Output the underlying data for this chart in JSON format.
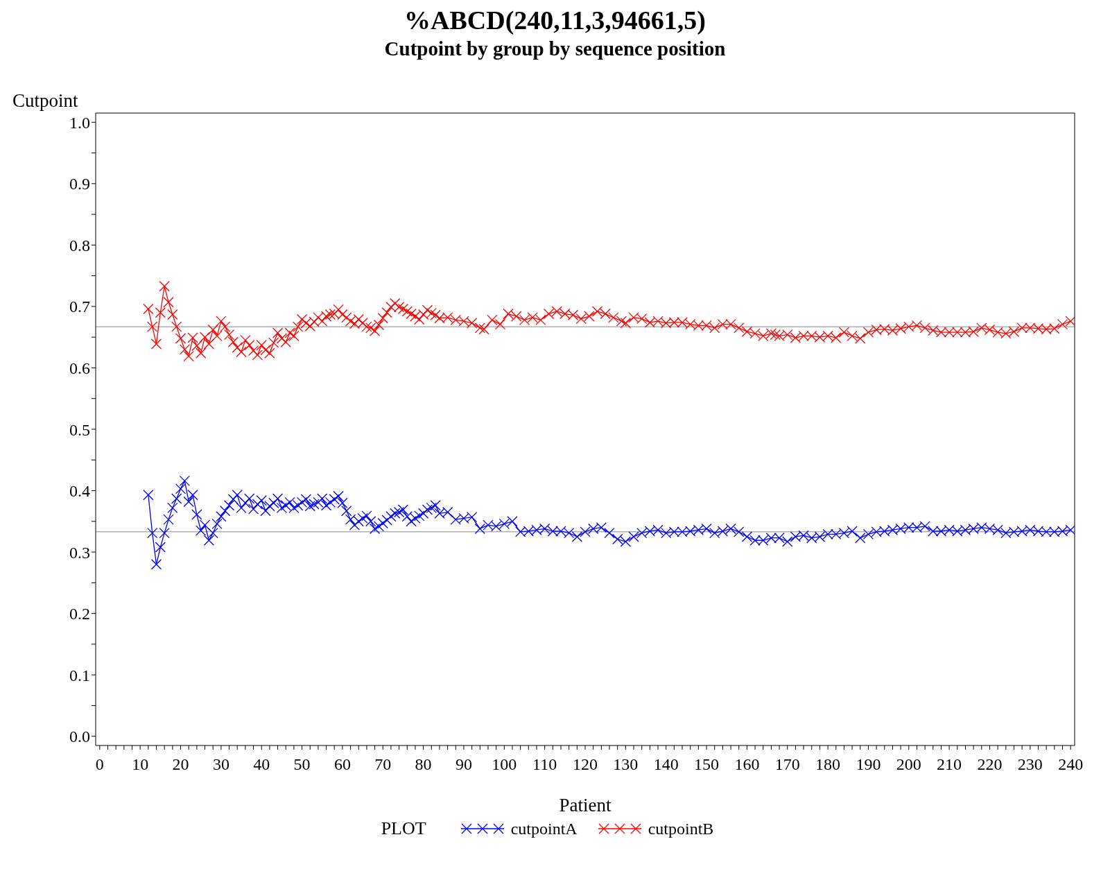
{
  "chart_data": {
    "type": "line",
    "title": "%ABCD(240,11,3,94661,5)",
    "subtitle": "Cutpoint by group by sequence position",
    "xlabel": "Patient",
    "ylabel": "Cutpoint",
    "legend_title": "PLOT",
    "legend": "bottom",
    "marker": "cross",
    "line_style": "solid",
    "xlim": [
      -1,
      241
    ],
    "xticks": [
      0,
      {
        "value": 2,
        "label": null
      },
      {
        "value": 4,
        "label": null
      },
      {
        "value": 6,
        "label": null
      },
      {
        "value": 8,
        "label": null
      },
      10,
      {
        "value": 12,
        "label": null
      },
      {
        "value": 14,
        "label": null
      },
      {
        "value": 16,
        "label": null
      },
      {
        "value": 18,
        "label": null
      },
      20,
      {
        "value": 22,
        "label": null
      },
      {
        "value": 24,
        "label": null
      },
      {
        "value": 26,
        "label": null
      },
      {
        "value": 28,
        "label": null
      },
      30,
      {
        "value": 32,
        "label": null
      },
      {
        "value": 34,
        "label": null
      },
      {
        "value": 36,
        "label": null
      },
      {
        "value": 38,
        "label": null
      },
      40,
      {
        "value": 42,
        "label": null
      },
      {
        "value": 44,
        "label": null
      },
      {
        "value": 46,
        "label": null
      },
      {
        "value": 48,
        "label": null
      },
      50,
      {
        "value": 52,
        "label": null
      },
      {
        "value": 54,
        "label": null
      },
      {
        "value": 56,
        "label": null
      },
      {
        "value": 58,
        "label": null
      },
      60,
      {
        "value": 62,
        "label": null
      },
      {
        "value": 64,
        "label": null
      },
      {
        "value": 66,
        "label": null
      },
      {
        "value": 68,
        "label": null
      },
      70,
      {
        "value": 72,
        "label": null
      },
      {
        "value": 74,
        "label": null
      },
      {
        "value": 76,
        "label": null
      },
      {
        "value": 78,
        "label": null
      },
      80,
      {
        "value": 82,
        "label": null
      },
      {
        "value": 84,
        "label": null
      },
      {
        "value": 86,
        "label": null
      },
      {
        "value": 88,
        "label": null
      },
      90,
      {
        "value": 92,
        "label": null
      },
      {
        "value": 94,
        "label": null
      },
      {
        "value": 96,
        "label": null
      },
      {
        "value": 98,
        "label": null
      },
      100,
      {
        "value": 102,
        "label": null
      },
      {
        "value": 104,
        "label": null
      },
      {
        "value": 106,
        "label": null
      },
      {
        "value": 108,
        "label": null
      },
      110,
      {
        "value": 112,
        "label": null
      },
      {
        "value": 114,
        "label": null
      },
      {
        "value": 116,
        "label": null
      },
      {
        "value": 118,
        "label": null
      },
      120,
      {
        "value": 122,
        "label": null
      },
      {
        "value": 124,
        "label": null
      },
      {
        "value": 126,
        "label": null
      },
      {
        "value": 128,
        "label": null
      },
      130,
      {
        "value": 132,
        "label": null
      },
      {
        "value": 134,
        "label": null
      },
      {
        "value": 136,
        "label": null
      },
      {
        "value": 138,
        "label": null
      },
      140,
      {
        "value": 142,
        "label": null
      },
      {
        "value": 144,
        "label": null
      },
      {
        "value": 146,
        "label": null
      },
      {
        "value": 148,
        "label": null
      },
      150,
      {
        "value": 152,
        "label": null
      },
      {
        "value": 154,
        "label": null
      },
      {
        "value": 156,
        "label": null
      },
      {
        "value": 158,
        "label": null
      },
      160,
      {
        "value": 162,
        "label": null
      },
      {
        "value": 164,
        "label": null
      },
      {
        "value": 166,
        "label": null
      },
      {
        "value": 168,
        "label": null
      },
      170,
      {
        "value": 172,
        "label": null
      },
      {
        "value": 174,
        "label": null
      },
      {
        "value": 176,
        "label": null
      },
      {
        "value": 178,
        "label": null
      },
      180,
      {
        "value": 182,
        "label": null
      },
      {
        "value": 184,
        "label": null
      },
      {
        "value": 186,
        "label": null
      },
      {
        "value": 188,
        "label": null
      },
      190,
      {
        "value": 192,
        "label": null
      },
      {
        "value": 194,
        "label": null
      },
      {
        "value": 196,
        "label": null
      },
      {
        "value": 198,
        "label": null
      },
      200,
      {
        "value": 202,
        "label": null
      },
      {
        "value": 204,
        "label": null
      },
      {
        "value": 206,
        "label": null
      },
      {
        "value": 208,
        "label": null
      },
      210,
      {
        "value": 212,
        "label": null
      },
      {
        "value": 214,
        "label": null
      },
      {
        "value": 216,
        "label": null
      },
      {
        "value": 218,
        "label": null
      },
      220,
      {
        "value": 222,
        "label": null
      },
      {
        "value": 224,
        "label": null
      },
      {
        "value": 226,
        "label": null
      },
      {
        "value": 228,
        "label": null
      },
      230,
      {
        "value": 232,
        "label": null
      },
      {
        "value": 234,
        "label": null
      },
      {
        "value": 236,
        "label": null
      },
      {
        "value": 238,
        "label": null
      },
      240
    ],
    "ylim": [
      -0.015,
      1.015
    ],
    "yticks": [
      {
        "value": 0,
        "label": "0.0"
      },
      {
        "value": 0.05,
        "label": null
      },
      {
        "value": 0.1,
        "label": "0.1"
      },
      {
        "value": 0.15,
        "label": null
      },
      {
        "value": 0.2,
        "label": "0.2"
      },
      {
        "value": 0.25,
        "label": null
      },
      {
        "value": 0.3,
        "label": "0.3"
      },
      {
        "value": 0.35,
        "label": null
      },
      {
        "value": 0.4,
        "label": "0.4"
      },
      {
        "value": 0.45,
        "label": null
      },
      {
        "value": 0.5,
        "label": "0.5"
      },
      {
        "value": 0.55,
        "label": null
      },
      {
        "value": 0.6,
        "label": "0.6"
      },
      {
        "value": 0.65,
        "label": null
      },
      {
        "value": 0.7,
        "label": "0.7"
      },
      {
        "value": 0.75,
        "label": null
      },
      {
        "value": 0.8,
        "label": "0.8"
      },
      {
        "value": 0.85,
        "label": null
      },
      {
        "value": 0.9,
        "label": "0.9"
      },
      {
        "value": 0.95,
        "label": null
      },
      {
        "value": 1,
        "label": "1.0"
      }
    ],
    "ref_lines": [
      {
        "axis": "y",
        "value": 0.667,
        "label": null,
        "color": "#b0b0b0"
      },
      {
        "axis": "y",
        "value": 0.333,
        "label": null,
        "color": "#b0b0b0"
      }
    ],
    "series": [
      {
        "name": "cutpointA",
        "color": "#0000ff",
        "x": [
          12,
          13,
          14,
          15,
          16,
          17,
          18,
          19,
          20,
          21,
          22,
          23,
          24,
          25,
          26,
          27,
          28,
          29,
          30,
          31,
          32,
          33,
          34,
          35,
          36,
          37,
          38,
          39,
          40,
          41,
          42,
          43,
          44,
          45,
          46,
          47,
          48,
          49,
          50,
          51,
          52,
          53,
          54,
          55,
          56,
          57,
          58,
          59,
          60,
          61,
          62,
          63,
          64,
          65,
          66,
          67,
          68,
          69,
          70,
          71,
          72,
          73,
          74,
          75,
          76,
          77,
          78,
          79,
          80,
          81,
          82,
          83,
          84,
          86,
          88,
          90,
          92,
          94,
          96,
          98,
          100,
          102,
          104,
          106,
          108,
          110,
          112,
          114,
          116,
          118,
          120,
          122,
          124,
          126,
          128,
          130,
          132,
          134,
          136,
          138,
          140,
          142,
          144,
          146,
          148,
          150,
          152,
          154,
          156,
          158,
          160,
          162,
          164,
          166,
          168,
          170,
          172,
          174,
          176,
          178,
          180,
          182,
          184,
          186,
          188,
          190,
          192,
          194,
          196,
          198,
          200,
          202,
          204,
          206,
          208,
          210,
          212,
          214,
          216,
          218,
          220,
          222,
          224,
          226,
          228,
          230,
          232,
          234,
          236,
          238,
          240
        ],
        "values": [
          0.393,
          0.331,
          0.28,
          0.308,
          0.331,
          0.353,
          0.372,
          0.387,
          0.403,
          0.416,
          0.382,
          0.393,
          0.361,
          0.335,
          0.344,
          0.319,
          0.331,
          0.346,
          0.358,
          0.367,
          0.376,
          0.386,
          0.393,
          0.372,
          0.38,
          0.387,
          0.37,
          0.378,
          0.384,
          0.367,
          0.375,
          0.38,
          0.387,
          0.372,
          0.376,
          0.381,
          0.372,
          0.376,
          0.381,
          0.386,
          0.375,
          0.378,
          0.381,
          0.387,
          0.376,
          0.381,
          0.386,
          0.391,
          0.38,
          0.367,
          0.353,
          0.344,
          0.35,
          0.355,
          0.359,
          0.35,
          0.338,
          0.342,
          0.347,
          0.352,
          0.358,
          0.363,
          0.365,
          0.369,
          0.358,
          0.35,
          0.355,
          0.359,
          0.363,
          0.369,
          0.372,
          0.376,
          0.363,
          0.365,
          0.353,
          0.355,
          0.357,
          0.338,
          0.344,
          0.342,
          0.346,
          0.35,
          0.333,
          0.334,
          0.336,
          0.338,
          0.334,
          0.334,
          0.331,
          0.325,
          0.333,
          0.338,
          0.34,
          0.331,
          0.321,
          0.317,
          0.325,
          0.331,
          0.334,
          0.336,
          0.331,
          0.333,
          0.333,
          0.334,
          0.336,
          0.338,
          0.331,
          0.334,
          0.338,
          0.333,
          0.325,
          0.319,
          0.319,
          0.323,
          0.323,
          0.317,
          0.325,
          0.327,
          0.323,
          0.325,
          0.329,
          0.329,
          0.331,
          0.334,
          0.323,
          0.329,
          0.333,
          0.334,
          0.336,
          0.338,
          0.34,
          0.34,
          0.342,
          0.334,
          0.334,
          0.336,
          0.334,
          0.336,
          0.338,
          0.34,
          0.338,
          0.336,
          0.331,
          0.333,
          0.334,
          0.336,
          0.334,
          0.333,
          0.333,
          0.334,
          0.336
        ]
      },
      {
        "name": "cutpointB",
        "color": "#ff0000",
        "x": [
          12,
          13,
          14,
          15,
          16,
          17,
          18,
          19,
          20,
          21,
          22,
          23,
          24,
          25,
          26,
          27,
          28,
          29,
          30,
          31,
          32,
          33,
          34,
          35,
          36,
          37,
          38,
          39,
          40,
          41,
          42,
          43,
          44,
          45,
          46,
          47,
          48,
          49,
          50,
          51,
          52,
          53,
          54,
          55,
          56,
          57,
          58,
          59,
          60,
          61,
          62,
          63,
          64,
          65,
          66,
          67,
          68,
          69,
          70,
          71,
          72,
          73,
          74,
          75,
          76,
          77,
          78,
          79,
          80,
          81,
          82,
          83,
          84,
          86,
          88,
          90,
          92,
          94,
          95,
          97,
          99,
          101,
          103,
          105,
          107,
          109,
          111,
          113,
          115,
          117,
          119,
          121,
          123,
          125,
          127,
          129,
          130,
          132,
          134,
          136,
          138,
          140,
          142,
          144,
          146,
          148,
          150,
          152,
          154,
          156,
          158,
          160,
          162,
          164,
          166,
          167,
          168,
          170,
          172,
          174,
          176,
          178,
          180,
          182,
          184,
          186,
          188,
          190,
          192,
          194,
          196,
          198,
          200,
          202,
          204,
          206,
          208,
          210,
          212,
          214,
          216,
          218,
          220,
          222,
          224,
          226,
          228,
          230,
          232,
          234,
          236,
          238,
          240
        ],
        "values": [
          0.696,
          0.667,
          0.639,
          0.69,
          0.733,
          0.707,
          0.687,
          0.667,
          0.648,
          0.63,
          0.619,
          0.649,
          0.636,
          0.624,
          0.65,
          0.639,
          0.662,
          0.652,
          0.676,
          0.667,
          0.654,
          0.642,
          0.633,
          0.626,
          0.645,
          0.637,
          0.628,
          0.621,
          0.637,
          0.629,
          0.624,
          0.641,
          0.657,
          0.648,
          0.642,
          0.657,
          0.652,
          0.667,
          0.679,
          0.673,
          0.668,
          0.675,
          0.682,
          0.676,
          0.684,
          0.687,
          0.688,
          0.695,
          0.687,
          0.682,
          0.676,
          0.672,
          0.679,
          0.673,
          0.667,
          0.665,
          0.66,
          0.67,
          0.681,
          0.69,
          0.699,
          0.705,
          0.699,
          0.696,
          0.692,
          0.688,
          0.684,
          0.679,
          0.687,
          0.694,
          0.689,
          0.686,
          0.681,
          0.682,
          0.678,
          0.676,
          0.673,
          0.665,
          0.663,
          0.678,
          0.671,
          0.688,
          0.684,
          0.678,
          0.682,
          0.678,
          0.688,
          0.692,
          0.688,
          0.686,
          0.68,
          0.684,
          0.692,
          0.688,
          0.682,
          0.676,
          0.673,
          0.682,
          0.68,
          0.674,
          0.676,
          0.673,
          0.674,
          0.674,
          0.671,
          0.669,
          0.669,
          0.665,
          0.671,
          0.671,
          0.665,
          0.659,
          0.656,
          0.652,
          0.656,
          0.654,
          0.652,
          0.654,
          0.649,
          0.652,
          0.652,
          0.65,
          0.652,
          0.649,
          0.658,
          0.652,
          0.648,
          0.658,
          0.662,
          0.663,
          0.661,
          0.664,
          0.667,
          0.669,
          0.665,
          0.661,
          0.658,
          0.658,
          0.658,
          0.658,
          0.659,
          0.665,
          0.662,
          0.658,
          0.656,
          0.659,
          0.665,
          0.665,
          0.664,
          0.663,
          0.664,
          0.671,
          0.676
        ]
      }
    ]
  }
}
